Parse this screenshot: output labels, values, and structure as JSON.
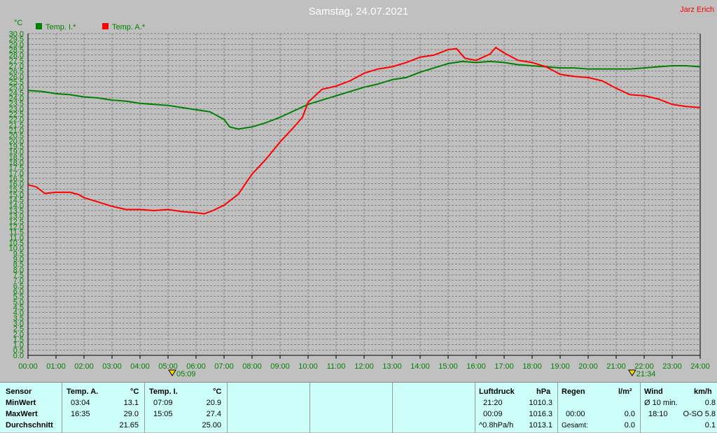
{
  "header": {
    "title": "Samstag, 24.07.2021",
    "author": "Jarz Erich"
  },
  "colors": {
    "background": "#c0c0c0",
    "grid": "#808080",
    "axis_text": "#008000",
    "title": "#ffffff",
    "author": "#ff0000",
    "inside_series": "#008000",
    "outside_series": "#ff0000",
    "panel": "#ccfffa"
  },
  "chart_data": {
    "type": "line",
    "yunit": "°C",
    "ylim": [
      0.0,
      30.0
    ],
    "ytick_step": 0.5,
    "ytick_labels": [
      "0.0",
      "0.5",
      "1.0",
      "1.5",
      "2.0",
      "2.5",
      "3.0",
      "3.5",
      "4.0",
      "4.5",
      "5.0",
      "5.5",
      "6.0",
      "6.5",
      "7.0",
      "7.5",
      "8.0",
      "8.5",
      "9.0",
      "9.5",
      "10.0",
      "10.5",
      "11.0",
      "11.5",
      "12.0",
      "12.5",
      "13.0",
      "13.5",
      "14.0",
      "14.5",
      "15.0",
      "15.5",
      "16.0",
      "16.5",
      "17.0",
      "17.5",
      "18.0",
      "18.5",
      "19.0",
      "19.5",
      "20.0",
      "20.5",
      "21.0",
      "21.5",
      "22.0",
      "22.5",
      "23.0",
      "23.5",
      "24.0",
      "24.5",
      "25.0",
      "25.5",
      "26.0",
      "26.5",
      "27.0",
      "27.5",
      "28.0",
      "28.5",
      "29.0",
      "29.5",
      "30.0"
    ],
    "xlim": [
      0,
      24
    ],
    "xtick_labels": [
      "00:00",
      "01:00",
      "02:00",
      "03:00",
      "04:00",
      "05:00",
      "06:00",
      "07:00",
      "08:00",
      "09:00",
      "10:00",
      "11:00",
      "12:00",
      "13:00",
      "14:00",
      "15:00",
      "16:00",
      "17:00",
      "18:00",
      "19:00",
      "20:00",
      "21:00",
      "22:00",
      "23:00",
      "24:00"
    ],
    "grid": true,
    "legend_position": "top-left",
    "sun_markers": [
      {
        "hour": 5.15,
        "label": "05:09"
      },
      {
        "hour": 21.57,
        "label": "21:34"
      }
    ],
    "series": [
      {
        "name": "Temp. I.*",
        "color": "#008000",
        "points": [
          [
            0,
            24.7
          ],
          [
            0.5,
            24.6
          ],
          [
            1,
            24.4
          ],
          [
            1.5,
            24.3
          ],
          [
            2,
            24.1
          ],
          [
            2.5,
            24.0
          ],
          [
            3,
            23.8
          ],
          [
            3.5,
            23.7
          ],
          [
            4,
            23.5
          ],
          [
            4.5,
            23.4
          ],
          [
            5,
            23.3
          ],
          [
            5.5,
            23.1
          ],
          [
            6,
            22.9
          ],
          [
            6.5,
            22.7
          ],
          [
            7,
            22.0
          ],
          [
            7.2,
            21.3
          ],
          [
            7.5,
            21.1
          ],
          [
            8,
            21.3
          ],
          [
            8.5,
            21.7
          ],
          [
            9,
            22.2
          ],
          [
            9.5,
            22.8
          ],
          [
            10,
            23.4
          ],
          [
            10.5,
            23.8
          ],
          [
            11,
            24.2
          ],
          [
            11.5,
            24.6
          ],
          [
            12,
            25.0
          ],
          [
            12.5,
            25.3
          ],
          [
            13,
            25.7
          ],
          [
            13.5,
            25.9
          ],
          [
            14,
            26.4
          ],
          [
            14.5,
            26.8
          ],
          [
            15,
            27.2
          ],
          [
            15.5,
            27.4
          ],
          [
            16,
            27.3
          ],
          [
            16.5,
            27.4
          ],
          [
            17,
            27.3
          ],
          [
            17.5,
            27.1
          ],
          [
            18,
            27.0
          ],
          [
            18.5,
            26.9
          ],
          [
            19,
            26.8
          ],
          [
            19.5,
            26.8
          ],
          [
            20,
            26.7
          ],
          [
            20.5,
            26.7
          ],
          [
            21,
            26.7
          ],
          [
            21.5,
            26.7
          ],
          [
            22,
            26.8
          ],
          [
            22.5,
            26.9
          ],
          [
            23,
            27.0
          ],
          [
            23.5,
            27.0
          ],
          [
            24,
            26.9
          ]
        ]
      },
      {
        "name": "Temp. A.*",
        "color": "#ff0000",
        "points": [
          [
            0,
            15.9
          ],
          [
            0.3,
            15.7
          ],
          [
            0.6,
            15.1
          ],
          [
            1,
            15.2
          ],
          [
            1.5,
            15.2
          ],
          [
            1.8,
            15.0
          ],
          [
            2,
            14.7
          ],
          [
            2.5,
            14.3
          ],
          [
            3,
            13.9
          ],
          [
            3.5,
            13.6
          ],
          [
            4,
            13.6
          ],
          [
            4.5,
            13.5
          ],
          [
            5,
            13.6
          ],
          [
            5.5,
            13.4
          ],
          [
            6,
            13.3
          ],
          [
            6.3,
            13.2
          ],
          [
            6.6,
            13.5
          ],
          [
            7,
            14.0
          ],
          [
            7.5,
            15.0
          ],
          [
            8,
            16.9
          ],
          [
            8.5,
            18.3
          ],
          [
            9,
            19.9
          ],
          [
            9.5,
            21.3
          ],
          [
            9.8,
            22.2
          ],
          [
            10,
            23.6
          ],
          [
            10.5,
            24.8
          ],
          [
            11,
            25.1
          ],
          [
            11.5,
            25.6
          ],
          [
            12,
            26.3
          ],
          [
            12.5,
            26.7
          ],
          [
            13,
            26.9
          ],
          [
            13.5,
            27.3
          ],
          [
            14,
            27.8
          ],
          [
            14.5,
            28.0
          ],
          [
            15,
            28.5
          ],
          [
            15.3,
            28.6
          ],
          [
            15.6,
            27.7
          ],
          [
            16,
            27.5
          ],
          [
            16.5,
            28.1
          ],
          [
            16.7,
            28.7
          ],
          [
            17,
            28.2
          ],
          [
            17.5,
            27.5
          ],
          [
            18,
            27.3
          ],
          [
            18.5,
            26.9
          ],
          [
            19,
            26.2
          ],
          [
            19.5,
            26.0
          ],
          [
            20,
            25.9
          ],
          [
            20.5,
            25.6
          ],
          [
            21,
            24.9
          ],
          [
            21.5,
            24.3
          ],
          [
            22,
            24.2
          ],
          [
            22.5,
            23.9
          ],
          [
            23,
            23.4
          ],
          [
            23.5,
            23.2
          ],
          [
            24,
            23.1
          ]
        ]
      }
    ]
  },
  "table": {
    "sensor": {
      "headers": [
        "Sensor",
        "MinWert",
        "MaxWert",
        "Durchschnitt"
      ]
    },
    "temp_a": {
      "title": "Temp. A.",
      "unit": "°C",
      "min_time": "03:04",
      "min_value": "13.1",
      "max_time": "16:35",
      "max_value": "29.0",
      "avg": "21.65"
    },
    "temp_i": {
      "title": "Temp. I.",
      "unit": "°C",
      "min_time": "07:09",
      "min_value": "20.9",
      "max_time": "15:05",
      "max_value": "27.4",
      "avg": "25.00"
    },
    "luftdruck": {
      "title": "Luftdruck",
      "unit": "hPa",
      "min_time": "21:20",
      "min_value": "1010.3",
      "max_time": "00:09",
      "max_value": "1016.3",
      "trend_label": "^0.8hPa/h",
      "trend_value": "1013.1"
    },
    "regen": {
      "title": "Regen",
      "unit": "l/m²",
      "r2_time": "00:00",
      "r2_value": "0.0",
      "total_label": "Gesamt:",
      "total_value": "0.0"
    },
    "wind": {
      "title": "Wind",
      "unit": "km/h",
      "avg_label": "Ø 10 min.",
      "avg_value": "0.8",
      "max_time": "18:10",
      "max_value": "O-SO 5.8",
      "last_value": "0.1"
    }
  }
}
